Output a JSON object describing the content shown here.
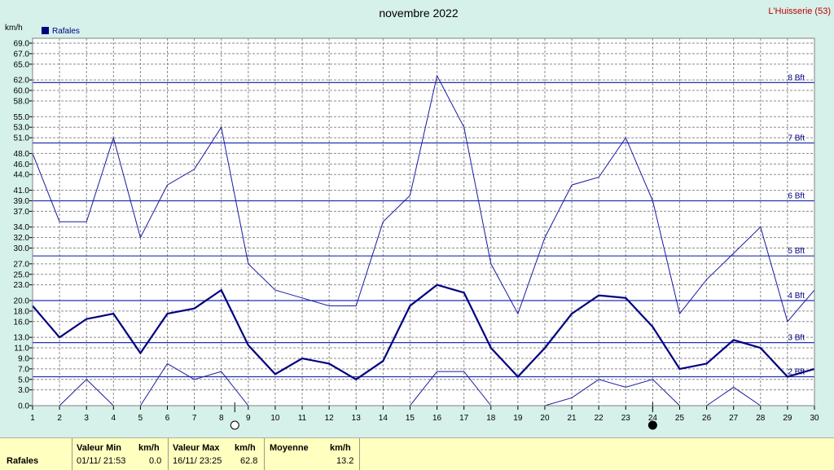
{
  "header": {
    "title": "novembre 2022",
    "station": "L'Huisserie (53)",
    "unit": "km/h",
    "legend": "Rafales"
  },
  "chart_data": {
    "type": "line",
    "title": "novembre 2022",
    "xlabel": "",
    "ylabel": "km/h",
    "x": [
      1,
      2,
      3,
      4,
      5,
      6,
      7,
      8,
      9,
      10,
      11,
      12,
      13,
      14,
      15,
      16,
      17,
      18,
      19,
      20,
      21,
      22,
      23,
      24,
      25,
      26,
      27,
      28,
      29,
      30
    ],
    "xlim": [
      1,
      30
    ],
    "ylim": [
      0,
      69
    ],
    "yticks": [
      "0.0",
      "3.0",
      "5.0",
      "7.0",
      "9.0",
      "11.0",
      "13.0",
      "16.0",
      "18.0",
      "20.0",
      "23.0",
      "25.0",
      "27.0",
      "30.0",
      "32.0",
      "34.0",
      "37.0",
      "39.0",
      "41.0",
      "44.0",
      "46.0",
      "48.0",
      "51.0",
      "53.0",
      "55.0",
      "58.0",
      "60.0",
      "62.0",
      "65.0",
      "67.0",
      "69.0"
    ],
    "grid": true,
    "legend_position": "top-left",
    "series": [
      {
        "name": "Rafales",
        "role": "max",
        "color": "#1a1aa0",
        "values": [
          48.0,
          35.0,
          35.0,
          51.0,
          32.0,
          42.0,
          45.0,
          53.0,
          27.0,
          22.0,
          20.5,
          19.0,
          19.0,
          35.0,
          40.0,
          62.8,
          53.0,
          27.0,
          17.5,
          32.0,
          42.0,
          43.5,
          51.0,
          39.0,
          17.5,
          24.0,
          29.0,
          34.0,
          16.0,
          22.0
        ]
      },
      {
        "role": "mean",
        "color": "#000080",
        "values": [
          19.0,
          13.0,
          16.5,
          17.5,
          10.0,
          17.5,
          18.5,
          22.0,
          11.5,
          6.0,
          9.0,
          8.0,
          5.0,
          8.5,
          19.0,
          23.0,
          21.5,
          11.0,
          5.5,
          11.0,
          17.5,
          21.0,
          20.5,
          15.0,
          7.0,
          8.0,
          12.5,
          11.0,
          5.5,
          7.0
        ]
      },
      {
        "role": "min",
        "color": "#1a1aa0",
        "values": [
          null,
          0.0,
          5.0,
          0.0,
          0.0,
          8.0,
          5.0,
          6.5,
          0.0,
          null,
          null,
          null,
          null,
          null,
          0.0,
          6.5,
          6.5,
          0.0,
          null,
          0.0,
          1.5,
          5.0,
          3.5,
          5.0,
          0.0,
          0.0,
          3.5,
          0.0,
          null,
          null
        ]
      }
    ],
    "beaufort": [
      {
        "label": "2 Bft",
        "value": 5.5
      },
      {
        "label": "3 Bft",
        "value": 12.0
      },
      {
        "label": "4 Bft",
        "value": 20.0
      },
      {
        "label": "5 Bft",
        "value": 28.5
      },
      {
        "label": "6 Bft",
        "value": 39.0
      },
      {
        "label": "7 Bft",
        "value": 50.0
      },
      {
        "label": "8 Bft",
        "value": 61.5
      }
    ],
    "moon_phases": [
      {
        "day": 8.5,
        "phase": "full"
      },
      {
        "day": 24,
        "phase": "new"
      }
    ]
  },
  "stats": {
    "row_label": "Rafales",
    "min_header": "Valeur Min",
    "min_unit": "km/h",
    "min_when": "01/11/  21:53",
    "min_value": "0.0",
    "max_header": "Valeur Max",
    "max_unit": "km/h",
    "max_when": "16/11/  23:25",
    "max_value": "62.8",
    "avg_header": "Moyenne",
    "avg_unit": "km/h",
    "avg_value": "13.2"
  },
  "colors": {
    "background": "#d6f0ea",
    "plot_background": "#ffffff",
    "series": "#000080",
    "beaufort_line": "#2233aa",
    "station_text": "#c00000",
    "stats_background": "#ffffc0"
  }
}
